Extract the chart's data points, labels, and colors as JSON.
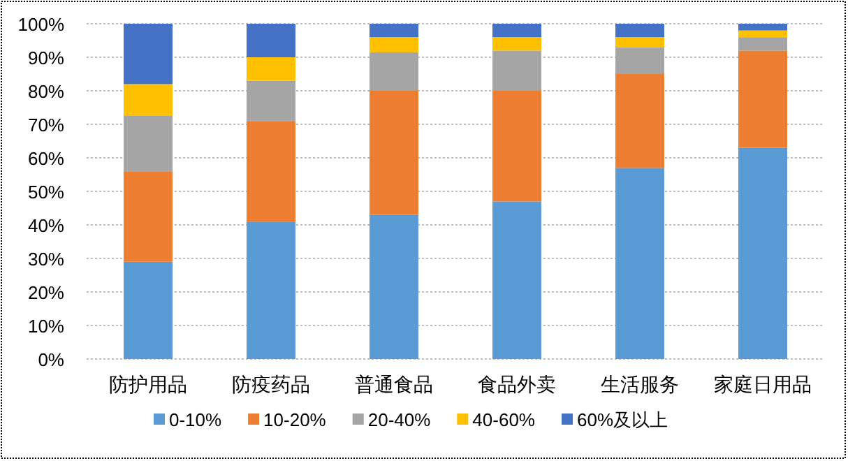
{
  "chart_data": {
    "type": "bar",
    "stacked": true,
    "categories": [
      "防护用品",
      "防疫药品",
      "普通食品",
      "食品外卖",
      "生活服务",
      "家庭日用品"
    ],
    "series": [
      {
        "name": "0-10%",
        "color": "#5b9bd5",
        "values": [
          29,
          41,
          43,
          47,
          57,
          63
        ]
      },
      {
        "name": "10-20%",
        "color": "#ed7d31",
        "values": [
          27,
          30,
          37,
          33,
          28,
          29
        ]
      },
      {
        "name": "20-40%",
        "color": "#a5a5a5",
        "values": [
          16.5,
          12,
          11.5,
          12,
          8,
          4
        ]
      },
      {
        "name": "40-60%",
        "color": "#ffc000",
        "values": [
          9.5,
          7,
          4.5,
          4,
          3,
          2
        ]
      },
      {
        "name": "60%及以上",
        "color": "#4472c4",
        "values": [
          18,
          10,
          4,
          4,
          4,
          2
        ]
      }
    ],
    "ylim": [
      0,
      100
    ],
    "yticks": [
      {
        "value": 0,
        "label": "0%"
      },
      {
        "value": 10,
        "label": "10%"
      },
      {
        "value": 20,
        "label": "20%"
      },
      {
        "value": 30,
        "label": "30%"
      },
      {
        "value": 40,
        "label": "40%"
      },
      {
        "value": 50,
        "label": "50%"
      },
      {
        "value": 60,
        "label": "60%"
      },
      {
        "value": 70,
        "label": "70%"
      },
      {
        "value": 80,
        "label": "80%"
      },
      {
        "value": 90,
        "label": "90%"
      },
      {
        "value": 100,
        "label": "100%"
      }
    ],
    "grid": "y",
    "legend": "bottom"
  }
}
